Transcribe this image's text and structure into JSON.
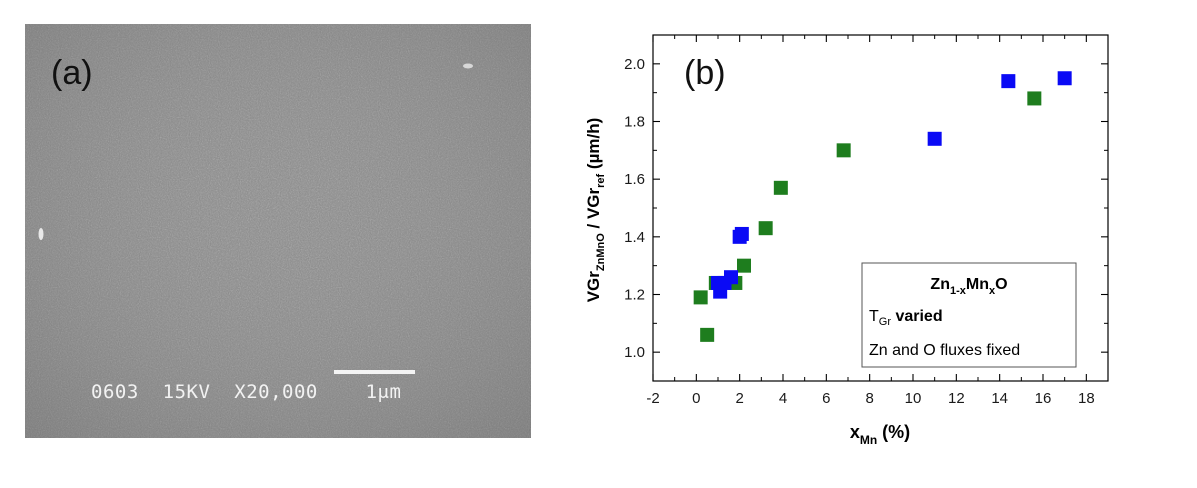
{
  "sem": {
    "label": "(a)",
    "caption": "0603  15KV  X20,000    1μm"
  },
  "chart_data": {
    "type": "scatter",
    "panel_label": "(b)",
    "xlabel_main": "x",
    "xlabel_sub": "Mn",
    "xlabel_unit": " (%)",
    "ylabel_parts": {
      "a": "VGr",
      "a_sub": "ZnMnO",
      "sep": " / VGr",
      "b_sub": "ref",
      "unit": " (µm/h)"
    },
    "xlim": [
      -2,
      19
    ],
    "ylim": [
      0.9,
      2.1
    ],
    "xticks": [
      "-2",
      "0",
      "2",
      "4",
      "6",
      "8",
      "10",
      "12",
      "14",
      "16",
      "18"
    ],
    "yticks": [
      "1.0",
      "1.2",
      "1.4",
      "1.6",
      "1.8",
      "2.0"
    ],
    "grid": false,
    "legend": {
      "placement": "bottom-right",
      "formula": {
        "p1": "Zn",
        "s1": "1-x",
        "p2": "Mn",
        "s2": "x",
        "p3": "O"
      },
      "line2": {
        "main": "T",
        "sub": "Gr",
        "bold": " varied"
      },
      "line3": "Zn and O fluxes fixed"
    },
    "series": [
      {
        "color": "#1e7d1e",
        "marker": "square",
        "x": [
          0.2,
          0.5,
          0.9,
          1.8,
          2.2,
          3.2,
          3.9,
          6.8,
          15.6
        ],
        "y": [
          1.19,
          1.06,
          1.24,
          1.24,
          1.3,
          1.43,
          1.57,
          1.7,
          1.88
        ]
      },
      {
        "color": "#0a0af5",
        "marker": "square",
        "x": [
          1.0,
          1.1,
          1.3,
          1.6,
          2.0,
          2.1,
          11.0,
          14.4,
          17.0
        ],
        "y": [
          1.24,
          1.21,
          1.24,
          1.26,
          1.4,
          1.41,
          1.74,
          1.94,
          1.95
        ]
      }
    ]
  }
}
